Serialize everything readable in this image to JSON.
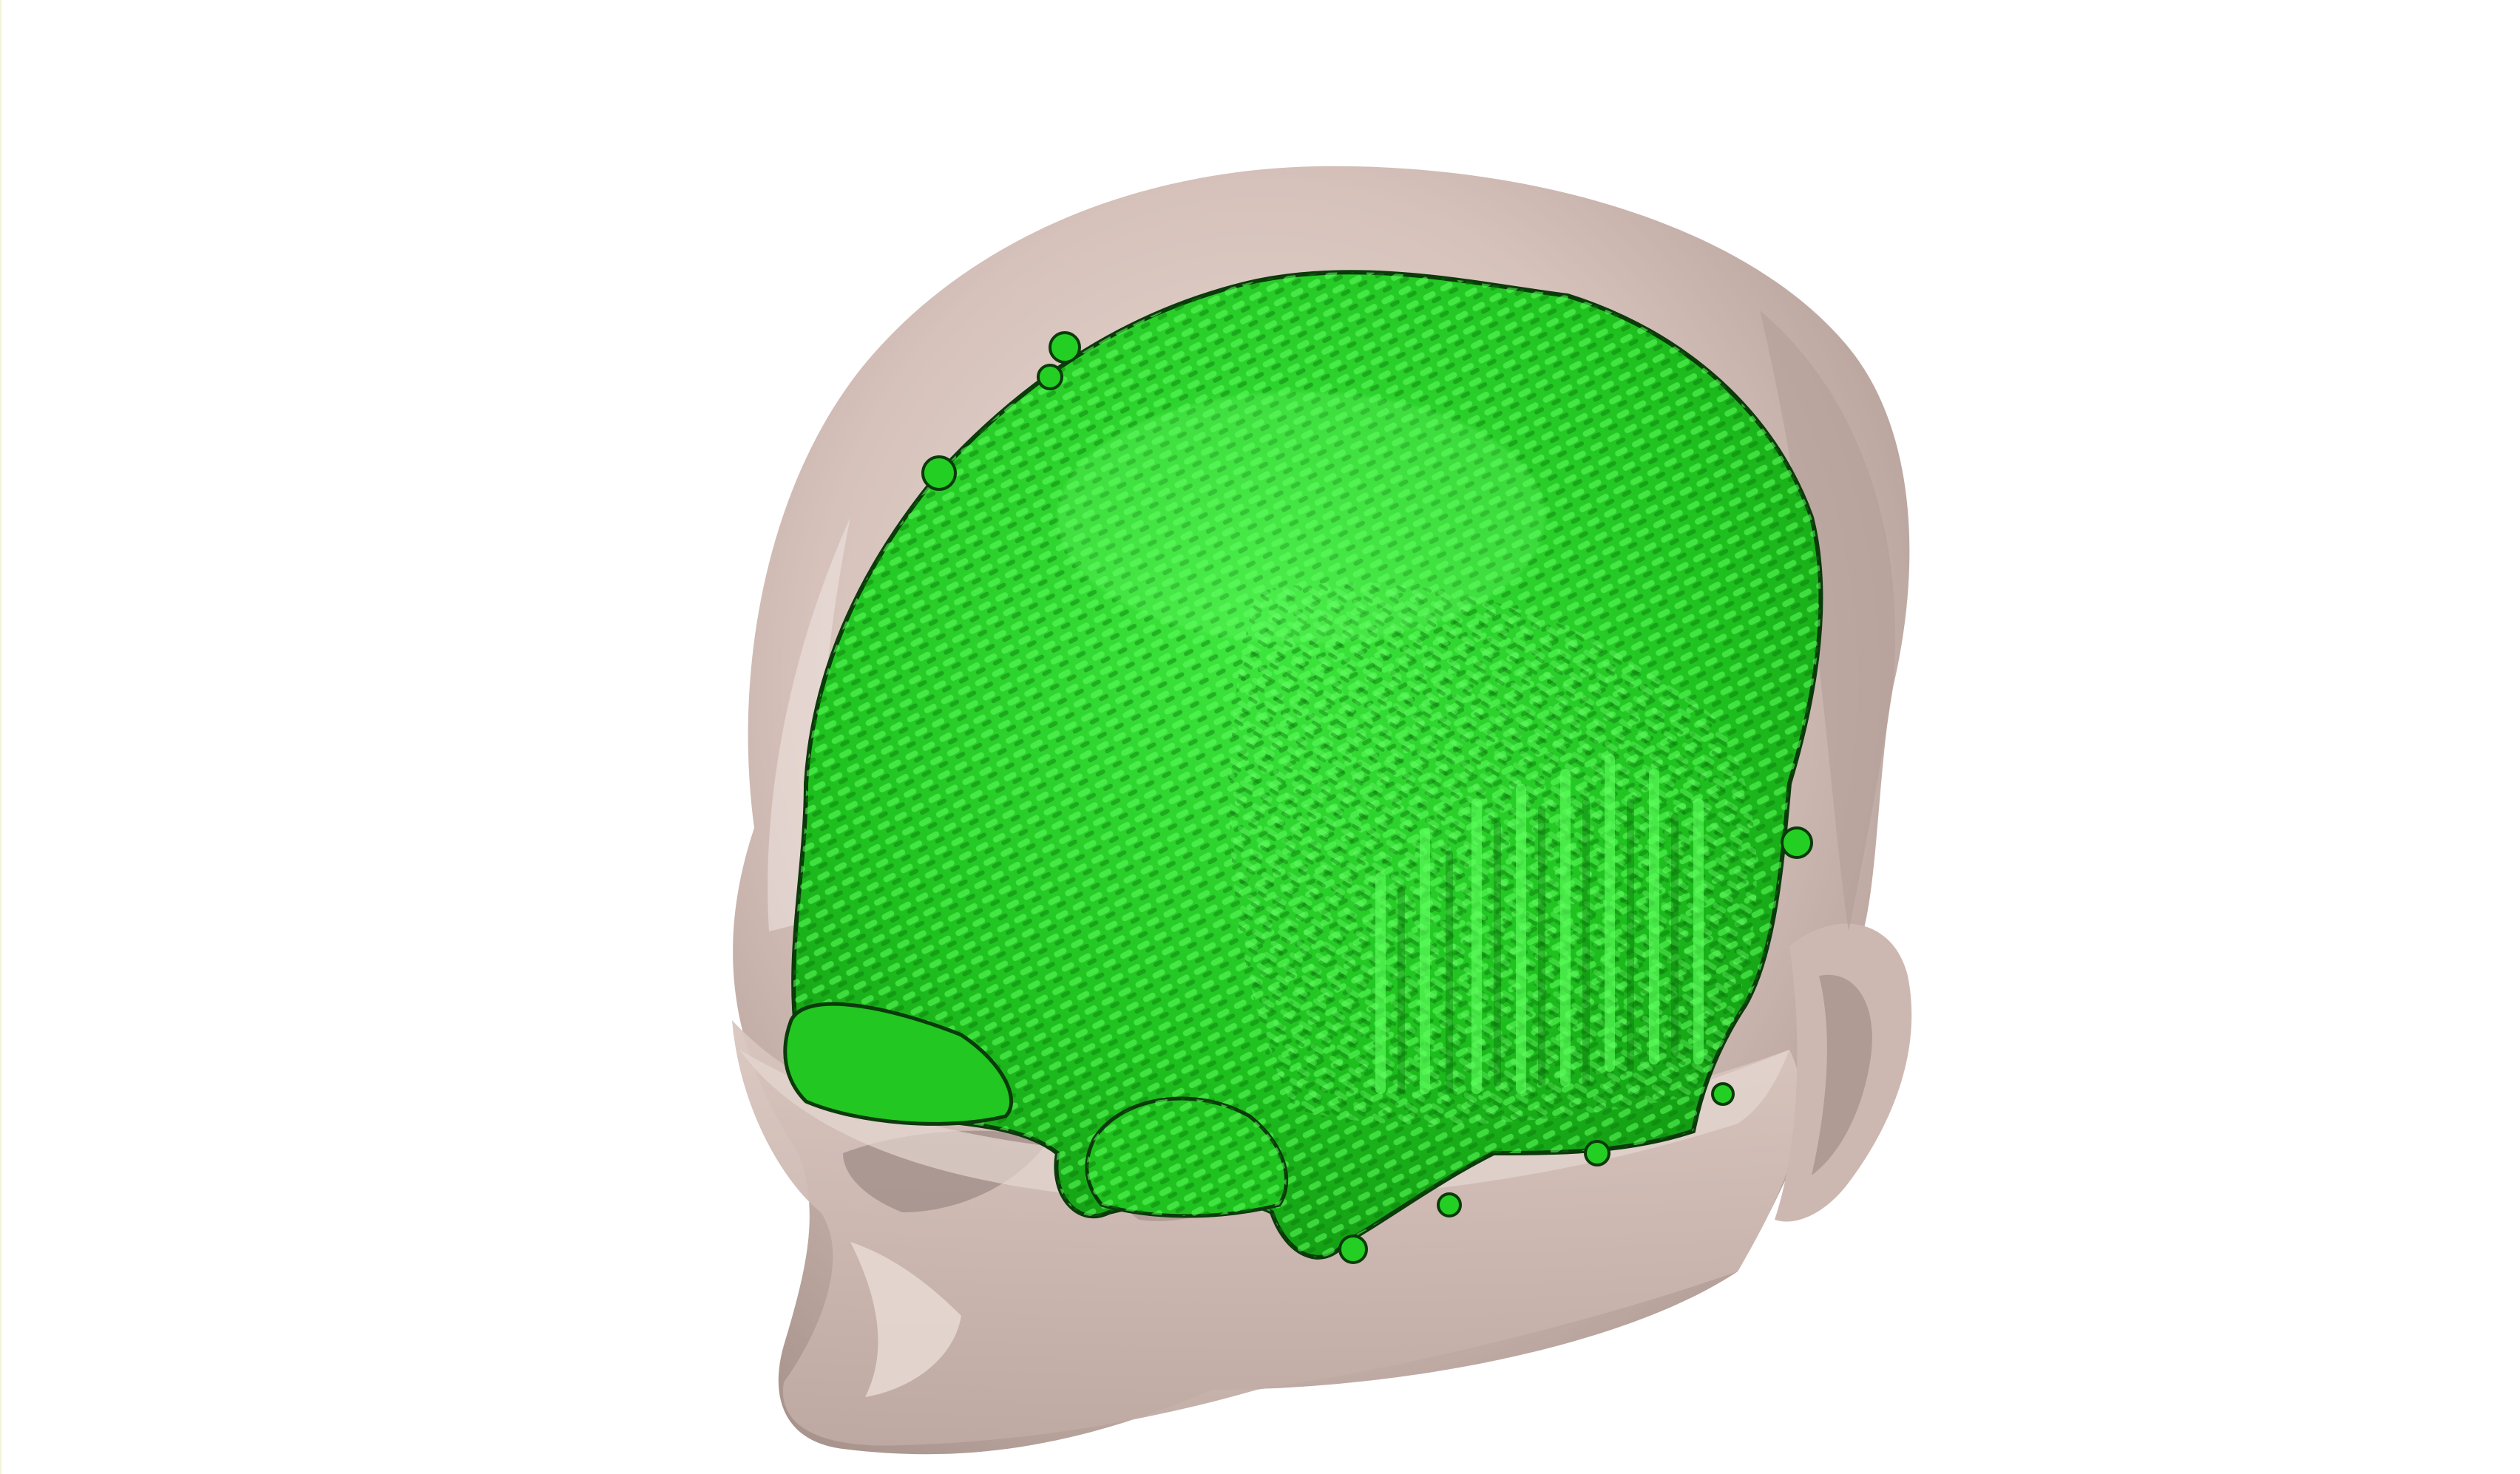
{
  "scene": {
    "background_color": "#ffffff",
    "subject": "head-surface",
    "overlay": "brain-segmentation-voxels"
  },
  "colors": {
    "skin": "#d6c2bb",
    "skin_shadow": "#a8948d",
    "skin_highlight": "#efe3de",
    "segmentation": "#1fd11f",
    "segmentation_dark": "#0a7a0a",
    "segmentation_light": "#5cff5c",
    "segmentation_outline": "#0b3a0b"
  }
}
